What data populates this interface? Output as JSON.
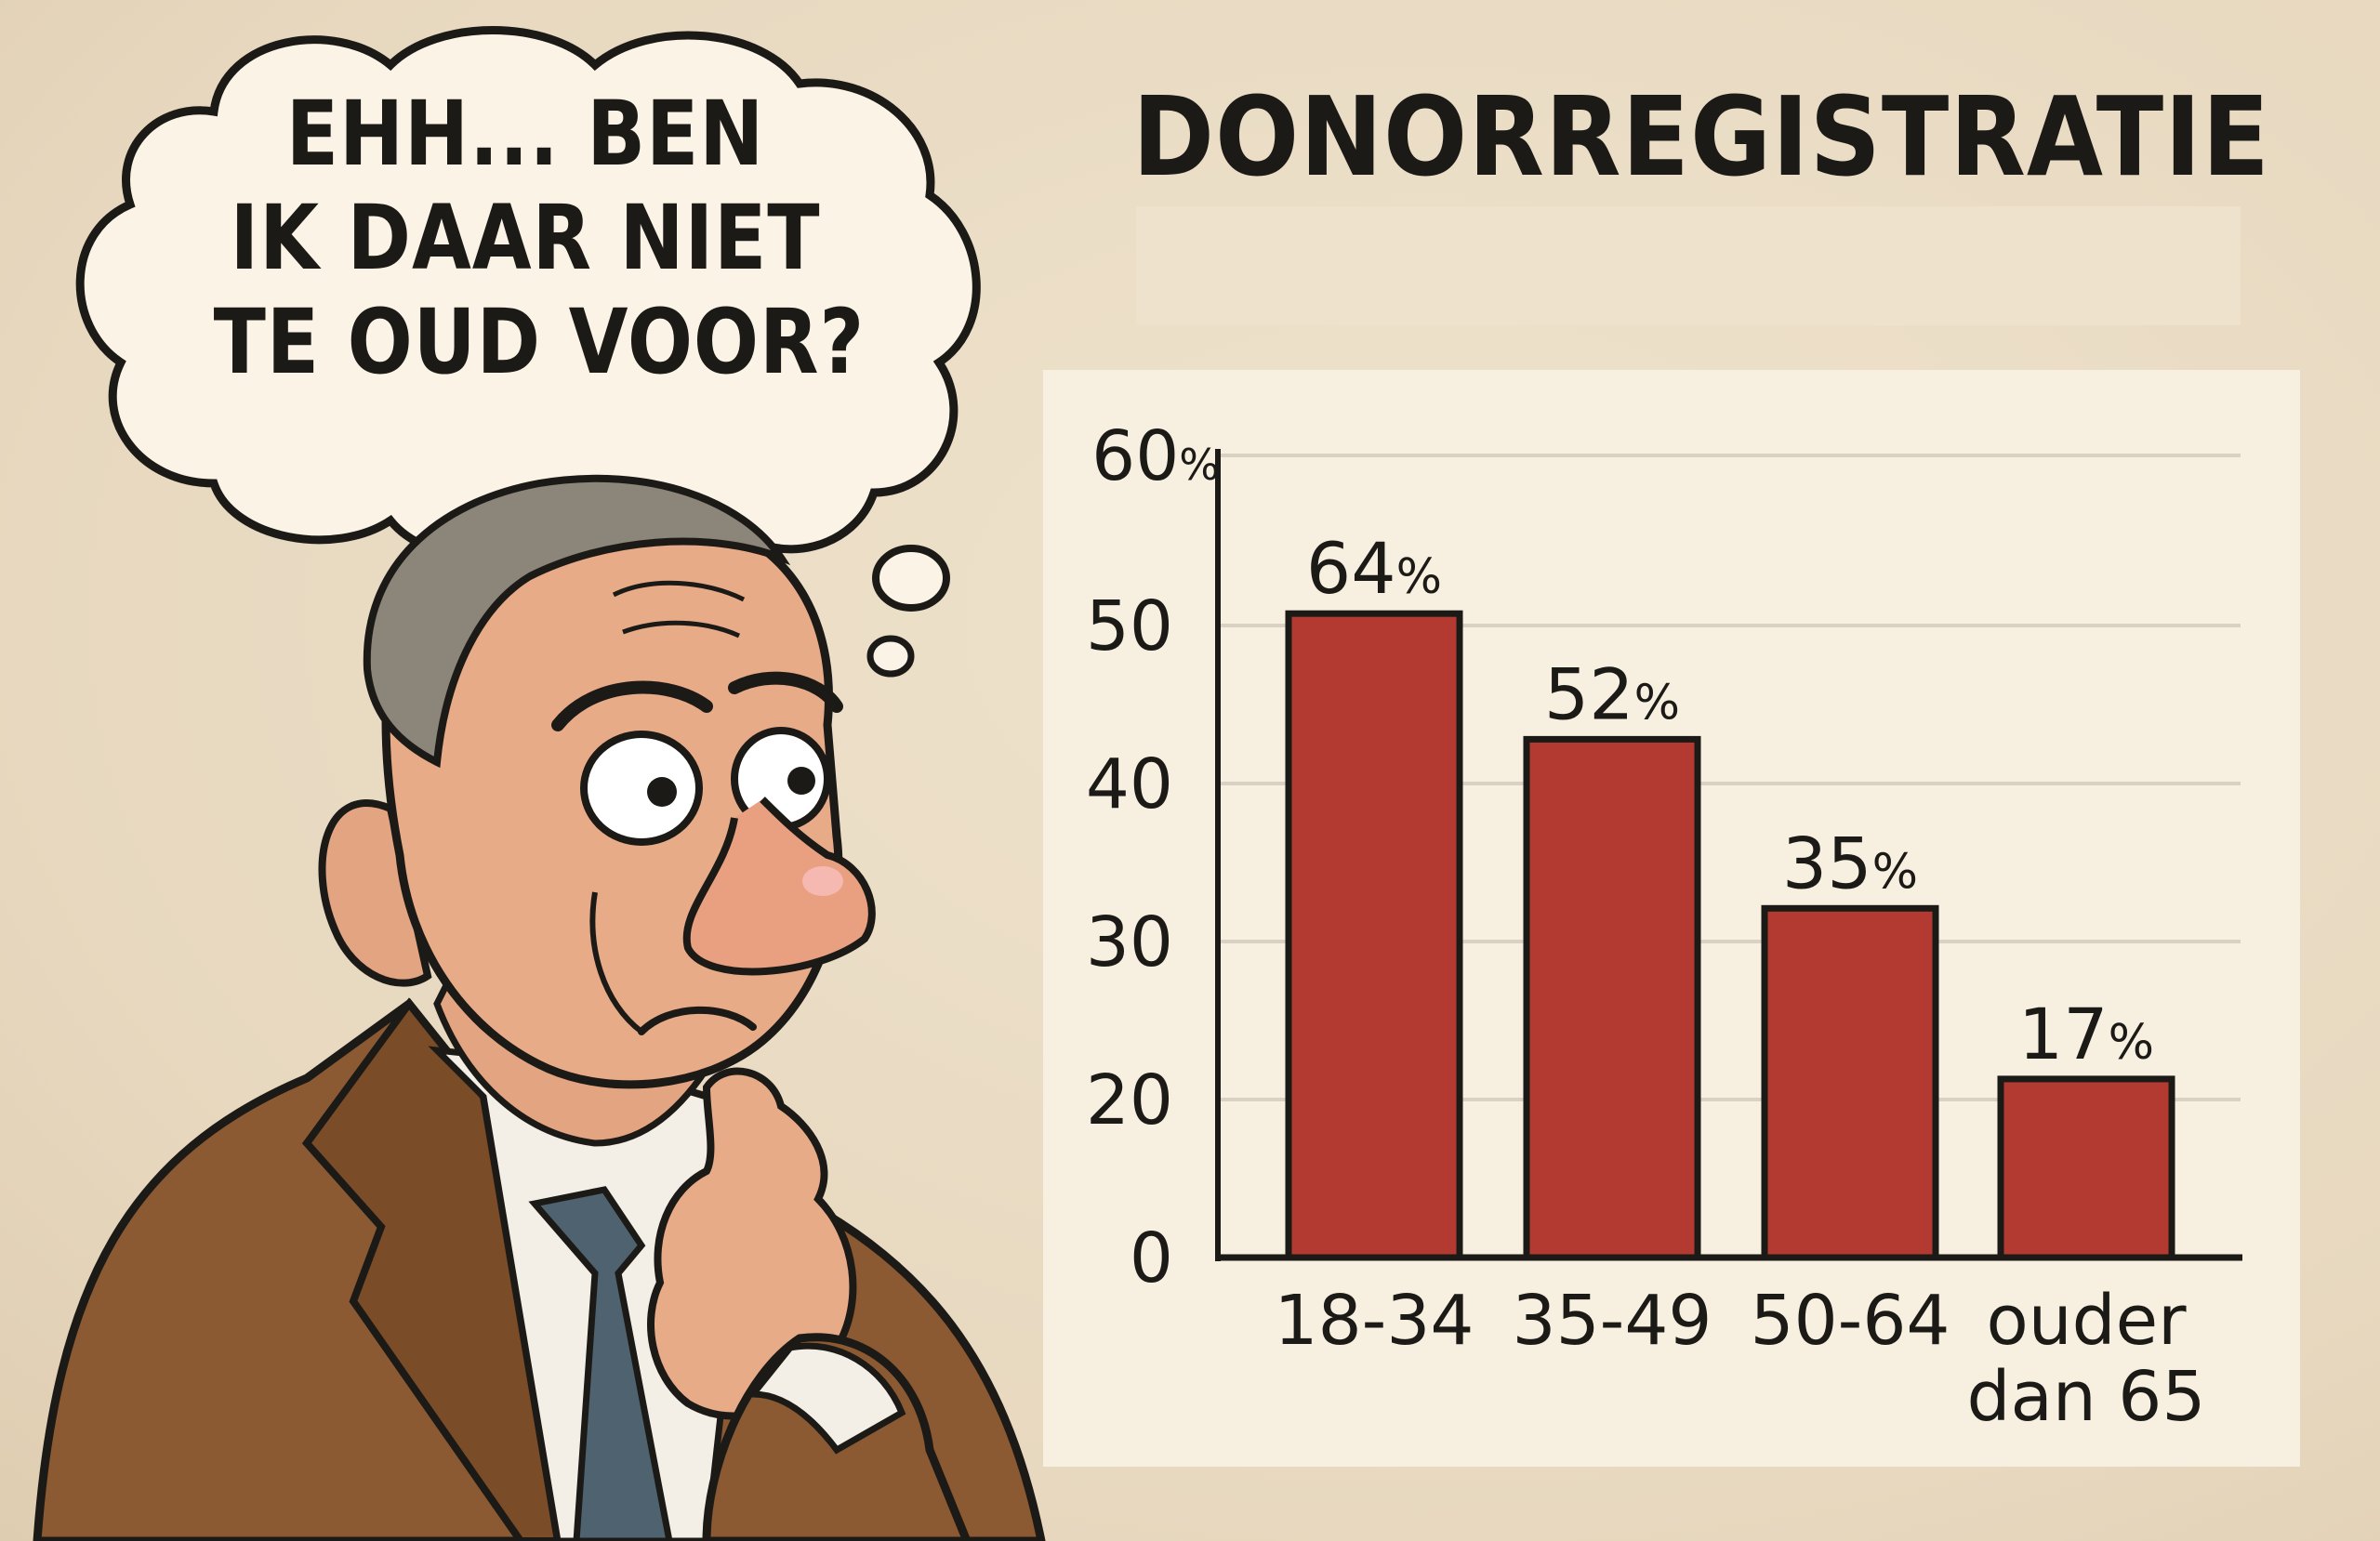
{
  "bubble": {
    "lines": [
      "EHH... BEN",
      "IK DAAR NIET",
      "TE OUD VOOR?"
    ]
  },
  "chart_data": {
    "type": "bar",
    "title": "DONORREGISTRATIE",
    "categories": [
      "18-34",
      "35-49",
      "50-64",
      "ouder dan 65"
    ],
    "values": [
      64,
      52,
      35,
      17
    ],
    "bar_heights_on_axis": [
      50.7,
      42.8,
      32.1,
      21.3
    ],
    "value_labels": [
      "64%",
      "52%",
      "35%",
      "17%"
    ],
    "yticks": [
      "0",
      "20",
      "30",
      "40",
      "50",
      "60%"
    ],
    "xlabel": "",
    "ylabel": "",
    "grid": true,
    "colors": {
      "bar": "#b23a30",
      "outline": "#1c1a17",
      "grid": "#d9d2c4"
    }
  }
}
